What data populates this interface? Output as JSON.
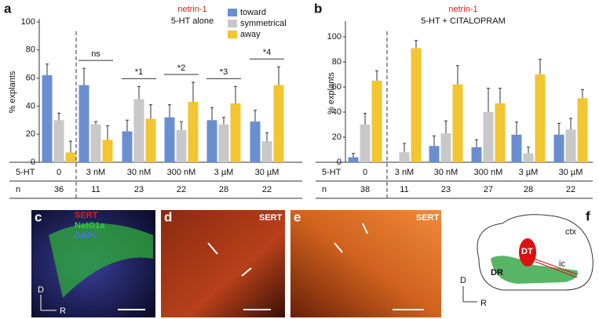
{
  "chart_data": [
    {
      "type": "bar",
      "panel": "a",
      "title": "netrin-1",
      "subtitle": "5-HT alone",
      "y_label": "% explants",
      "row_labels": [
        "5-HT",
        "n"
      ],
      "categories": [
        "0",
        "3 nM",
        "30 nM",
        "300 nM",
        "3 µM",
        "30 µM"
      ],
      "n": [
        36,
        11,
        23,
        22,
        28,
        22
      ],
      "series": [
        {
          "name": "toward",
          "color": "#6a8fd0",
          "values": [
            62,
            55,
            22,
            32,
            30,
            29
          ],
          "errors": [
            8,
            12,
            8,
            9,
            9,
            8
          ]
        },
        {
          "name": "symmetrical",
          "color": "#c8c8c8",
          "values": [
            30,
            27,
            45,
            23,
            27,
            15
          ],
          "errors": [
            5,
            2,
            9,
            6,
            5,
            6
          ]
        },
        {
          "name": "away",
          "color": "#f2c531",
          "values": [
            7,
            16,
            31,
            43,
            42,
            55
          ],
          "errors": [
            8,
            10,
            10,
            14,
            12,
            13
          ]
        }
      ],
      "annotations": [
        {
          "category": 1,
          "text": "ns"
        },
        {
          "category": 2,
          "text": "*1"
        },
        {
          "category": 3,
          "text": "*2"
        },
        {
          "category": 4,
          "text": "*3"
        },
        {
          "category": 5,
          "text": "*4"
        }
      ],
      "ylim": [
        0,
        100
      ],
      "yticks": [
        0,
        20,
        40,
        60,
        80,
        100
      ],
      "legend": true
    },
    {
      "type": "bar",
      "panel": "b",
      "title": "netrin-1",
      "subtitle": "5-HT + CITALOPRAM",
      "y_label": "% explants",
      "row_labels": [
        "5-HT",
        "n"
      ],
      "categories": [
        "0",
        "3 nM",
        "30 nM",
        "300 nM",
        "3 µM",
        "30 µM"
      ],
      "n": [
        38,
        11,
        23,
        27,
        28,
        22
      ],
      "series": [
        {
          "color": "#6a8fd0",
          "values": [
            4,
            0,
            13,
            12,
            22,
            22
          ],
          "errors": [
            3,
            0,
            8,
            6,
            10,
            9
          ]
        },
        {
          "color": "#c8c8c8",
          "values": [
            30,
            8,
            23,
            40,
            7,
            26
          ],
          "errors": [
            9,
            7,
            10,
            19,
            5,
            9
          ]
        },
        {
          "color": "#f2c531",
          "values": [
            65,
            91,
            62,
            47,
            70,
            51
          ],
          "errors": [
            8,
            6,
            15,
            12,
            12,
            7
          ]
        }
      ],
      "ylim": [
        0,
        110
      ],
      "yticks": [
        0,
        20,
        40,
        60,
        80,
        100
      ],
      "legend": false
    }
  ],
  "panels": {
    "c": {
      "label": "c",
      "stains": [
        "SERT",
        "NetG1a",
        "DAPI"
      ],
      "axis": [
        "D",
        "R"
      ]
    },
    "d": {
      "label": "d",
      "stain": "SERT"
    },
    "e": {
      "label": "e",
      "stain": "SERT"
    },
    "f": {
      "label": "f",
      "regions": [
        "ctx",
        "DT",
        "DR",
        "ic"
      ],
      "axis": [
        "D",
        "R"
      ]
    }
  }
}
